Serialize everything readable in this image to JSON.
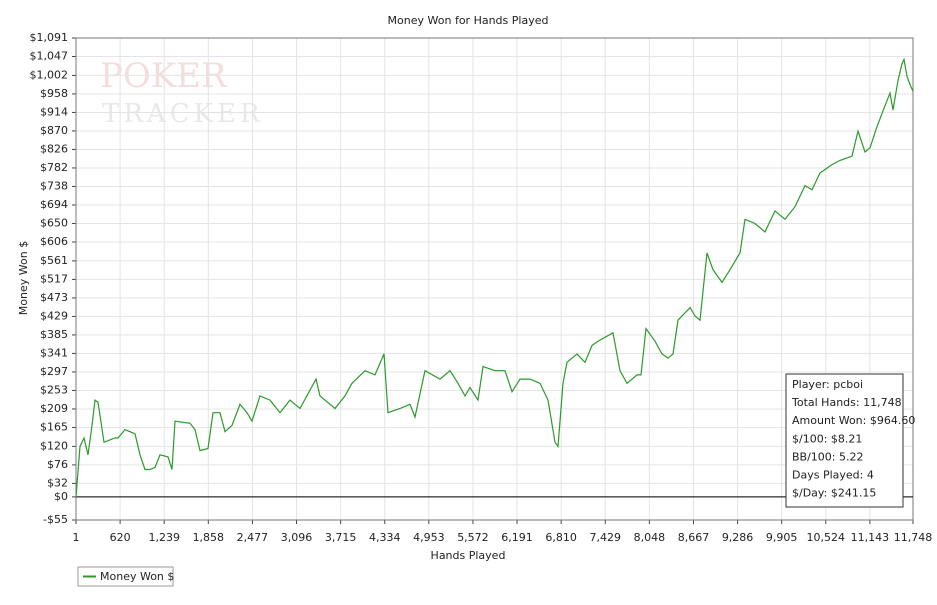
{
  "chart_data": {
    "type": "line",
    "title": "Money Won for Hands Played",
    "x_label": "Hands Played",
    "y_label": "Money Won $",
    "watermark": [
      "POKER",
      "TRACKER"
    ],
    "grid": true,
    "legend": "bottom-left",
    "xlim": [
      1,
      11748
    ],
    "ylim": [
      -55,
      1091
    ],
    "xticks": [
      1,
      620,
      {
        "value": 1239,
        "label": "1,239"
      },
      {
        "value": 1858,
        "label": "1,858"
      },
      {
        "value": 2477,
        "label": "2,477"
      },
      {
        "value": 3096,
        "label": "3,096"
      },
      {
        "value": 3715,
        "label": "3,715"
      },
      {
        "value": 4334,
        "label": "4,334"
      },
      {
        "value": 4953,
        "label": "4,953"
      },
      {
        "value": 5572,
        "label": "5,572"
      },
      {
        "value": 6191,
        "label": "6,191"
      },
      {
        "value": 6810,
        "label": "6,810"
      },
      {
        "value": 7429,
        "label": "7,429"
      },
      {
        "value": 8048,
        "label": "8,048"
      },
      {
        "value": 8667,
        "label": "8,667"
      },
      {
        "value": 9286,
        "label": "9,286"
      },
      {
        "value": 9905,
        "label": "9,905"
      },
      {
        "value": 10524,
        "label": "10,524"
      },
      {
        "value": 11143,
        "label": "11,143"
      },
      {
        "value": 11748,
        "label": "11,748"
      }
    ],
    "yticks": [
      {
        "value": -55,
        "label": "-$55"
      },
      {
        "value": 0,
        "label": "$0"
      },
      {
        "value": 32,
        "label": "$32"
      },
      {
        "value": 76,
        "label": "$76"
      },
      {
        "value": 120,
        "label": "$120"
      },
      {
        "value": 165,
        "label": "$165"
      },
      {
        "value": 209,
        "label": "$209"
      },
      {
        "value": 253,
        "label": "$253"
      },
      {
        "value": 297,
        "label": "$297"
      },
      {
        "value": 341,
        "label": "$341"
      },
      {
        "value": 385,
        "label": "$385"
      },
      {
        "value": 429,
        "label": "$429"
      },
      {
        "value": 473,
        "label": "$473"
      },
      {
        "value": 517,
        "label": "$517"
      },
      {
        "value": 561,
        "label": "$561"
      },
      {
        "value": 606,
        "label": "$606"
      },
      {
        "value": 650,
        "label": "$650"
      },
      {
        "value": 694,
        "label": "$694"
      },
      {
        "value": 738,
        "label": "$738"
      },
      {
        "value": 782,
        "label": "$782"
      },
      {
        "value": 826,
        "label": "$826"
      },
      {
        "value": 870,
        "label": "$870"
      },
      {
        "value": 914,
        "label": "$914"
      },
      {
        "value": 958,
        "label": "$958"
      },
      {
        "value": 1002,
        "label": "$1,002"
      },
      {
        "value": 1047,
        "label": "$1,047"
      },
      {
        "value": 1091,
        "label": "$1,091"
      }
    ],
    "annotations": [
      "Player: pcboi",
      "Total Hands: 11,748",
      "Amount Won: $964.60",
      "$/100: $8.21",
      "BB/100: 5.22",
      "Days Played: 4",
      "$/Day: $241.15"
    ],
    "x": [
      1,
      57,
      113,
      169,
      226,
      268,
      310,
      394,
      548,
      590,
      689,
      829,
      899,
      969,
      1040,
      1110,
      1180,
      1292,
      1348,
      1390,
      1601,
      1671,
      1741,
      1854,
      1924,
      2022,
      2092,
      2190,
      2303,
      2401,
      2471,
      2583,
      2724,
      2864,
      3004,
      3145,
      3369,
      3425,
      3636,
      3777,
      3875,
      4057,
      4197,
      4324,
      4380,
      4548,
      4689,
      4759,
      4899,
      5110,
      5250,
      5362,
      5461,
      5531,
      5643,
      5713,
      5882,
      6022,
      6120,
      6232,
      6373,
      6513,
      6625,
      6724,
      6766,
      6836,
      6892,
      7032,
      7145,
      7243,
      7327,
      7538,
      7636,
      7734,
      7874,
      7930,
      8001,
      8127,
      8225,
      8310,
      8380,
      8450,
      8619,
      8689,
      8759,
      8857,
      8941,
      9067,
      9180,
      9250,
      9320,
      9390,
      9531,
      9671,
      9811,
      9952,
      10092,
      10232,
      10331,
      10443,
      10611,
      10724,
      10892,
      10976,
      11075,
      11145,
      11243,
      11355,
      11425,
      11468,
      11538,
      11594,
      11622,
      11664,
      11706,
      11748
    ],
    "series": [
      {
        "name": "Money Won $",
        "color": "#2a9a2a",
        "values": [
          0,
          120,
          140,
          100,
          170,
          230,
          225,
          130,
          140,
          140,
          160,
          150,
          100,
          65,
          65,
          70,
          100,
          95,
          65,
          180,
          175,
          160,
          110,
          115,
          200,
          200,
          155,
          170,
          220,
          200,
          180,
          240,
          230,
          200,
          230,
          210,
          280,
          240,
          210,
          240,
          270,
          300,
          290,
          340,
          200,
          210,
          220,
          190,
          300,
          280,
          300,
          270,
          240,
          260,
          230,
          310,
          300,
          300,
          250,
          280,
          280,
          270,
          230,
          130,
          120,
          270,
          320,
          340,
          320,
          360,
          370,
          390,
          300,
          270,
          290,
          290,
          400,
          370,
          340,
          330,
          340,
          420,
          450,
          430,
          420,
          580,
          540,
          510,
          540,
          560,
          580,
          660,
          650,
          630,
          680,
          660,
          690,
          740,
          730,
          770,
          790,
          800,
          810,
          870,
          820,
          830,
          880,
          930,
          960,
          920,
          990,
          1030,
          1040,
          1000,
          980,
          964.6
        ]
      }
    ]
  }
}
